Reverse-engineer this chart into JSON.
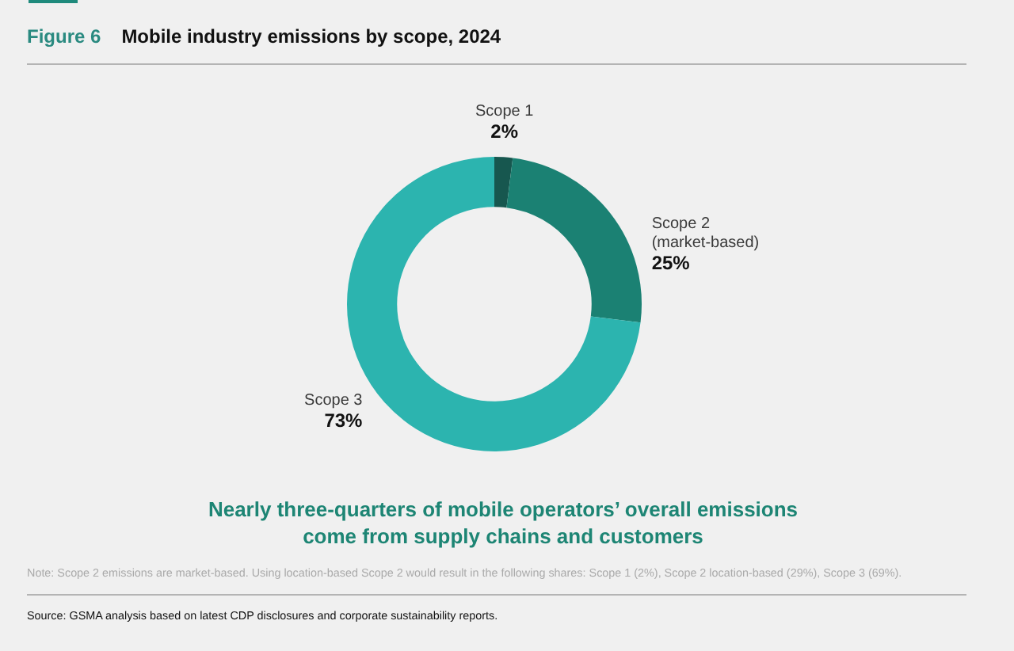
{
  "chart_data": {
    "type": "donut",
    "title": "Mobile industry emissions by scope, 2024",
    "subtitle": "Nearly three-quarters of mobile operators’ overall emissions come from supply chains and customers",
    "categories": [
      "Scope 1",
      "Scope 2 (market-based)",
      "Scope 3"
    ],
    "values": [
      2,
      25,
      73
    ],
    "colors": [
      "#17574f",
      "#1b8173",
      "#2cb4af"
    ],
    "value_labels": [
      "2%",
      "25%",
      "73%"
    ],
    "legend": false,
    "annotations": [
      "Figure 6",
      "Note: Scope 2 emissions are market-based. Using location-based Scope 2 would result in the following shares: Scope 1 (2%), Scope 2 location-based (29%), Scope 3 (69%).",
      "Source: GSMA analysis based on latest CDP disclosures and corporate sustainability reports."
    ]
  }
}
